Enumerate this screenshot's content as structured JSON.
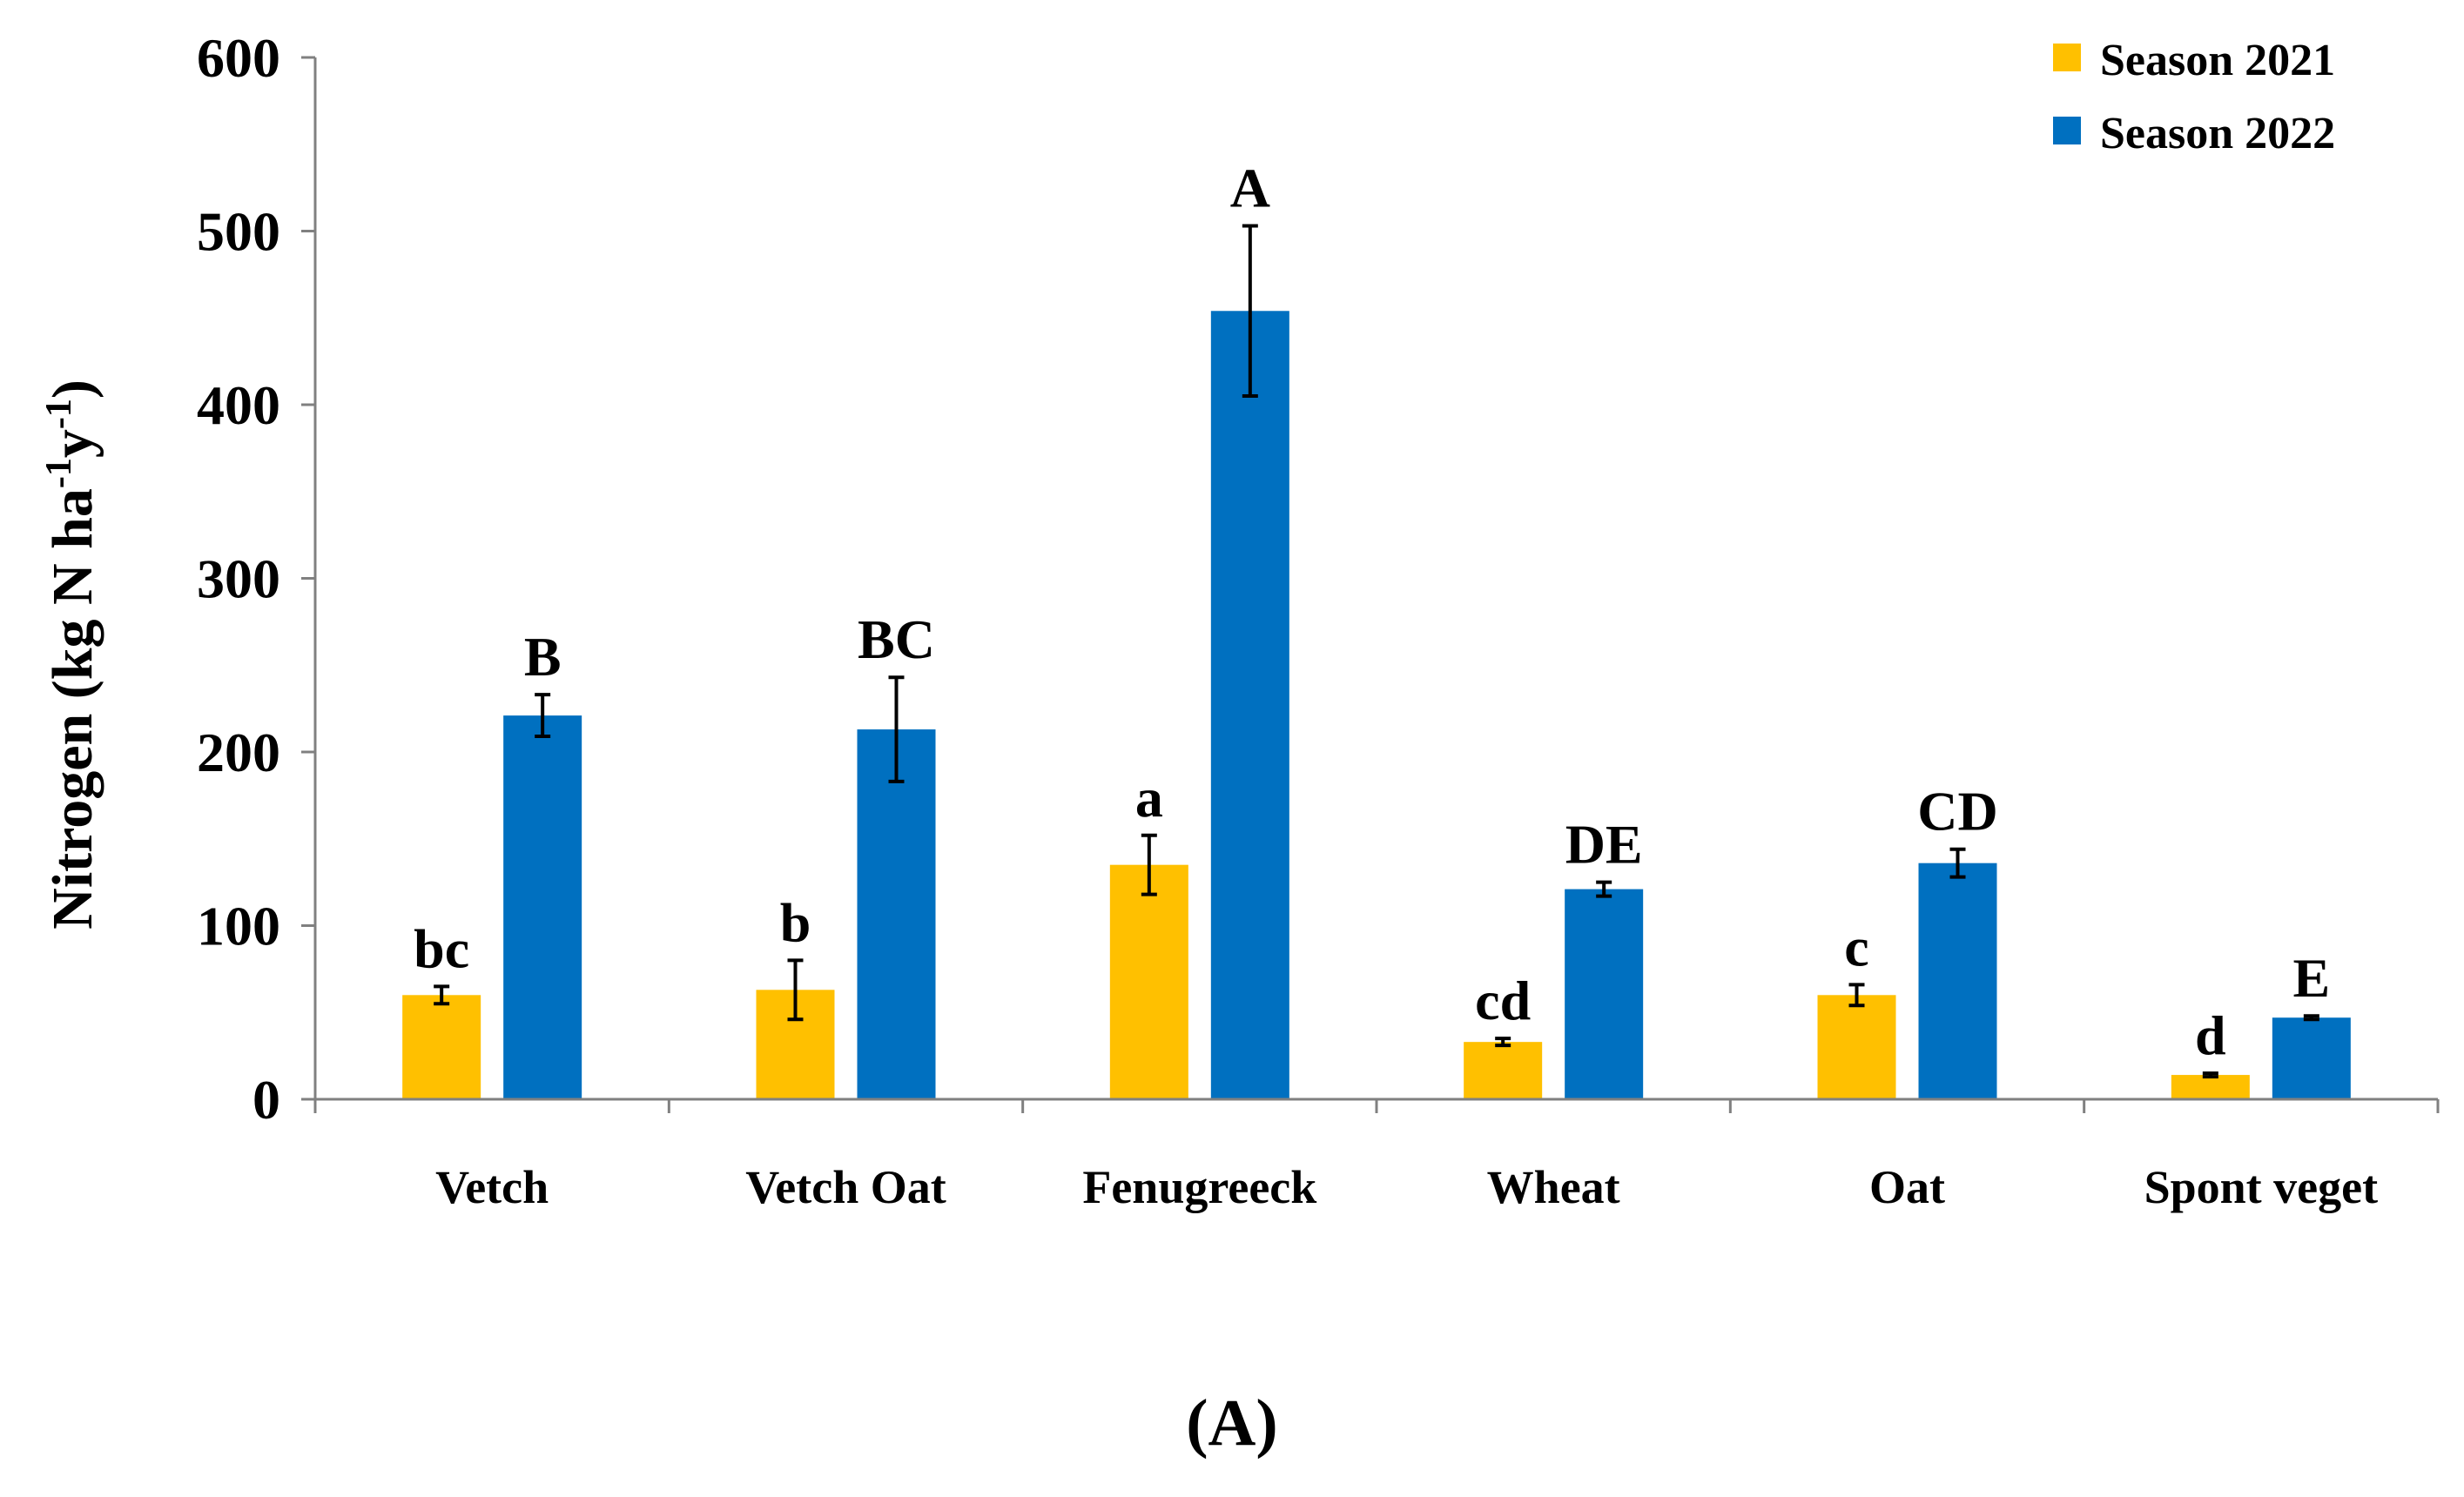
{
  "colors": {
    "season_2021": "#FFC000",
    "season_2022": "#0070C0",
    "axis": "#808080",
    "text": "#000000"
  },
  "chart_data": {
    "type": "bar",
    "title": "",
    "caption": "(A)",
    "xlabel": "",
    "ylabel_parts": {
      "before": "Nitrogen (kg N ha",
      "sup1": "-1",
      "middle": "y",
      "sup2": "-1",
      "after": ")"
    },
    "ylim": [
      0,
      600
    ],
    "yticks": [
      "0",
      "100",
      "200",
      "300",
      "400",
      "500",
      "600"
    ],
    "ytick_values": [
      0,
      100,
      200,
      300,
      400,
      500,
      600
    ],
    "categories": [
      "Vetch",
      "Vetch Oat",
      "Fenugreeck",
      "Wheat",
      "Oat",
      "Spont veget"
    ],
    "legend_position": "top-right",
    "series": [
      {
        "name": "Season 2021",
        "color": "#FFC000",
        "values": [
          60,
          63,
          135,
          33,
          60,
          14
        ],
        "errors": [
          5,
          17,
          17,
          2,
          6,
          1
        ],
        "letters": [
          "bc",
          "b",
          "a",
          "cd",
          "c",
          "d"
        ]
      },
      {
        "name": "Season 2022",
        "color": "#0070C0",
        "values": [
          221,
          213,
          454,
          121,
          136,
          47
        ],
        "errors": [
          12,
          30,
          49,
          4,
          8,
          1
        ],
        "letters": [
          "B",
          "BC",
          "A",
          "DE",
          "CD",
          "E"
        ]
      }
    ]
  }
}
